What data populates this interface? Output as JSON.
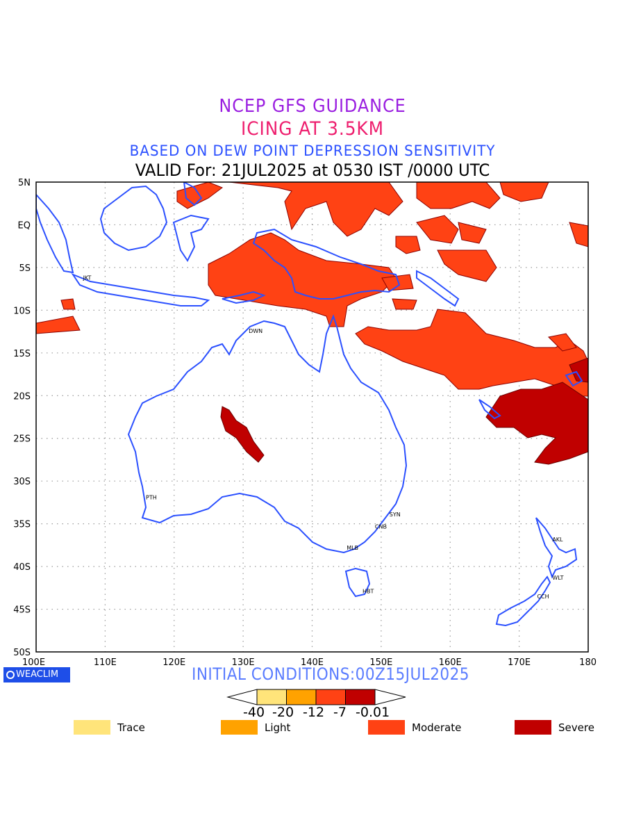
{
  "titles": {
    "line1": "NCEP GFS GUIDANCE",
    "line2": "ICING AT 3.5KM",
    "line3": "BASED ON DEW POINT DEPRESSION SENSITIVITY",
    "line4": "VALID For: 21JUL2025 at 0530 IST /0000 UTC"
  },
  "map": {
    "lat_labels": [
      "5N",
      "EQ",
      "5S",
      "10S",
      "15S",
      "20S",
      "25S",
      "30S",
      "35S",
      "40S",
      "45S",
      "50S"
    ],
    "lon_labels": [
      "100E",
      "110E",
      "120E",
      "130E",
      "140E",
      "150E",
      "160E",
      "170E",
      "180"
    ],
    "lat_range": [
      -50,
      5
    ],
    "lon_range": [
      100,
      180
    ],
    "grid": "dotted",
    "coastline_color": "#2b50ff",
    "cities": [
      {
        "code": "JKT",
        "lon": 106.8,
        "lat": -6.2
      },
      {
        "code": "DWN",
        "lon": 130.8,
        "lat": -12.4
      },
      {
        "code": "PTH",
        "lon": 115.9,
        "lat": -31.9
      },
      {
        "code": "SYN",
        "lon": 151.2,
        "lat": -33.9
      },
      {
        "code": "CNB",
        "lon": 149.1,
        "lat": -35.3
      },
      {
        "code": "MLB",
        "lon": 145.0,
        "lat": -37.8
      },
      {
        "code": "HBT",
        "lon": 147.3,
        "lat": -42.9
      },
      {
        "code": "AKL",
        "lon": 174.8,
        "lat": -36.8
      },
      {
        "code": "WLT",
        "lon": 174.8,
        "lat": -41.3
      },
      {
        "code": "CCH",
        "lon": 172.6,
        "lat": -43.5
      }
    ]
  },
  "footer": {
    "logo": "WEACLIM",
    "initial_conditions": "INITIAL CONDITIONS:00Z15JUL2025"
  },
  "colorbar": {
    "values": [
      "-40",
      "-20",
      "-12",
      "-7",
      "-0.01"
    ],
    "colors": [
      "#ffe47a",
      "#ffa200",
      "#ff4214",
      "#c00000"
    ]
  },
  "legend": [
    {
      "label": "Trace",
      "color": "#ffe47a"
    },
    {
      "label": "Light",
      "color": "#ffa200"
    },
    {
      "label": "Moderate",
      "color": "#ff4214"
    },
    {
      "label": "Severe",
      "color": "#c00000"
    }
  ]
}
